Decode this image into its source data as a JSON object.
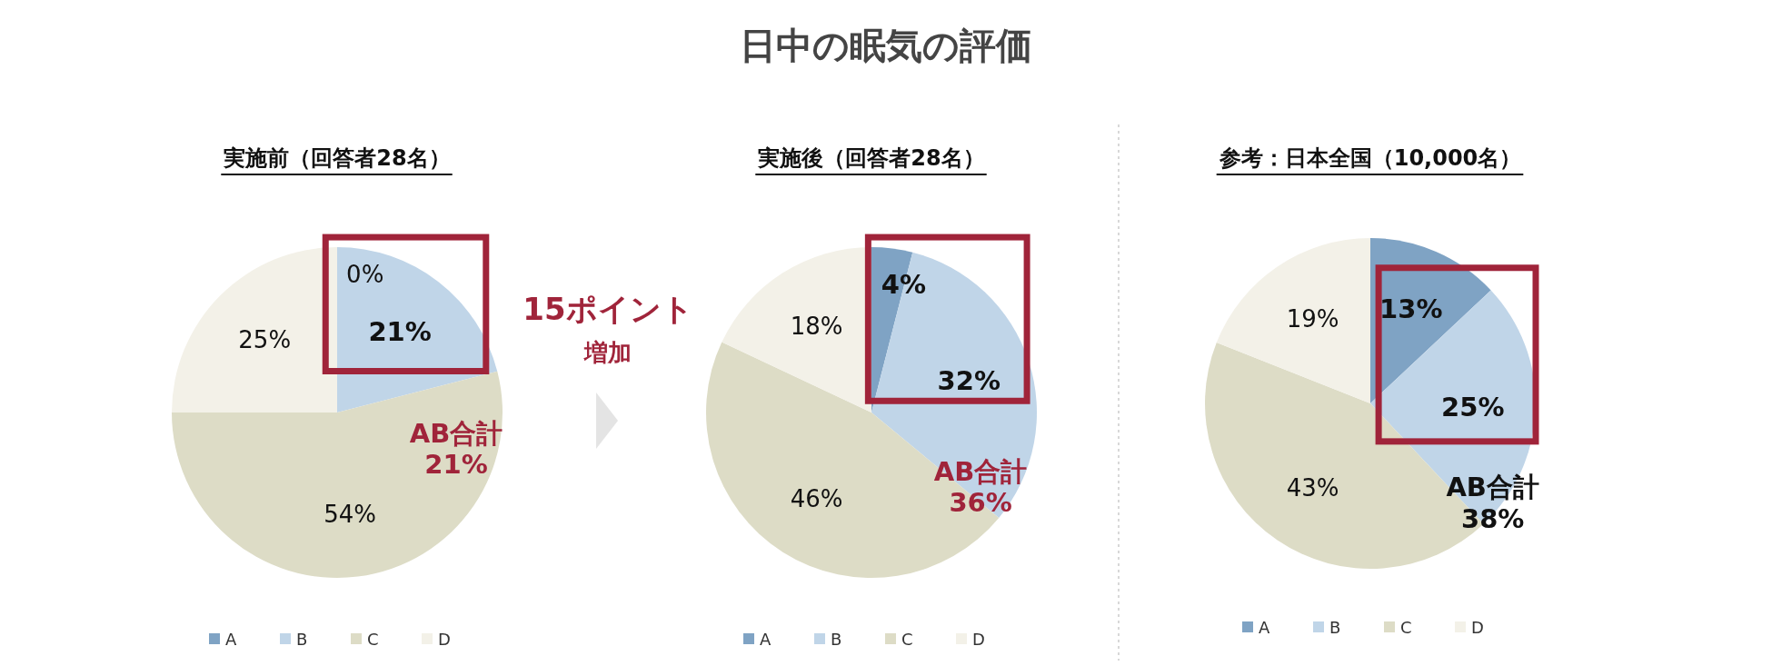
{
  "chart_data": [
    {
      "type": "other",
      "title": "日中の眠気の評価",
      "annotations": [
        "15ポイント",
        "増加"
      ]
    },
    {
      "type": "pie",
      "title": "実施前（回答者28名）",
      "categories": [
        "A",
        "B",
        "C",
        "D"
      ],
      "values": [
        0,
        21,
        54,
        25
      ],
      "value_labels": [
        "0%",
        "21%",
        "54%",
        "25%"
      ],
      "colors": [
        "#7fa3c4",
        "#c0d5e8",
        "#dddcc6",
        "#f3f1e8"
      ],
      "legend": "bottom",
      "annotations": [
        "AB合計\n21%"
      ]
    },
    {
      "type": "pie",
      "title": "実施後（回答者28名）",
      "categories": [
        "A",
        "B",
        "C",
        "D"
      ],
      "values": [
        4,
        32,
        46,
        18
      ],
      "value_labels": [
        "4%",
        "32%",
        "46%",
        "18%"
      ],
      "colors": [
        "#7fa3c4",
        "#c0d5e8",
        "#dddcc6",
        "#f3f1e8"
      ],
      "legend": "bottom",
      "annotations": [
        "AB合計\n36%"
      ]
    },
    {
      "type": "pie",
      "title": "参考：日本全国（10,000名）",
      "categories": [
        "A",
        "B",
        "C",
        "D"
      ],
      "values": [
        13,
        25,
        43,
        19
      ],
      "value_labels": [
        "13%",
        "25%",
        "43%",
        "19%"
      ],
      "colors": [
        "#7fa3c4",
        "#c0d5e8",
        "#dddcc6",
        "#f3f1e8"
      ],
      "legend": "bottom",
      "annotations": [
        "AB合計\n38%"
      ]
    }
  ]
}
